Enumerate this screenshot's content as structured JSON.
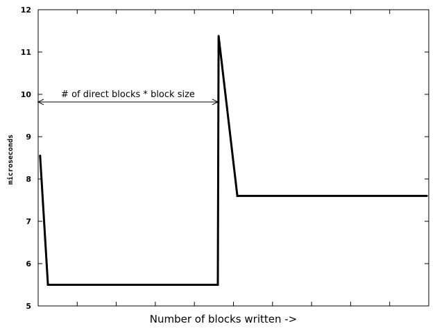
{
  "chart_data": {
    "type": "line",
    "title": "",
    "xlabel": "Number of blocks written ->",
    "ylabel": "microseconds",
    "ylim": [
      5,
      12
    ],
    "yticks": [
      "5",
      "6",
      "7",
      "8",
      "9",
      "10",
      "11",
      "12"
    ],
    "xtick_count": 10,
    "grid": false,
    "legend": "none",
    "series": [
      {
        "values": [
          {
            "x": 0.05,
            "y": 8.55
          },
          {
            "x": 0.25,
            "y": 5.5
          },
          {
            "x": 4.6,
            "y": 5.5
          },
          {
            "x": 4.62,
            "y": 11.38
          },
          {
            "x": 5.1,
            "y": 7.6
          },
          {
            "x": 9.95,
            "y": 7.6
          }
        ]
      }
    ],
    "annotation": {
      "text": "# of direct blocks * block size",
      "from_x": 0,
      "to_x": 4.6,
      "y": 9.82
    }
  }
}
